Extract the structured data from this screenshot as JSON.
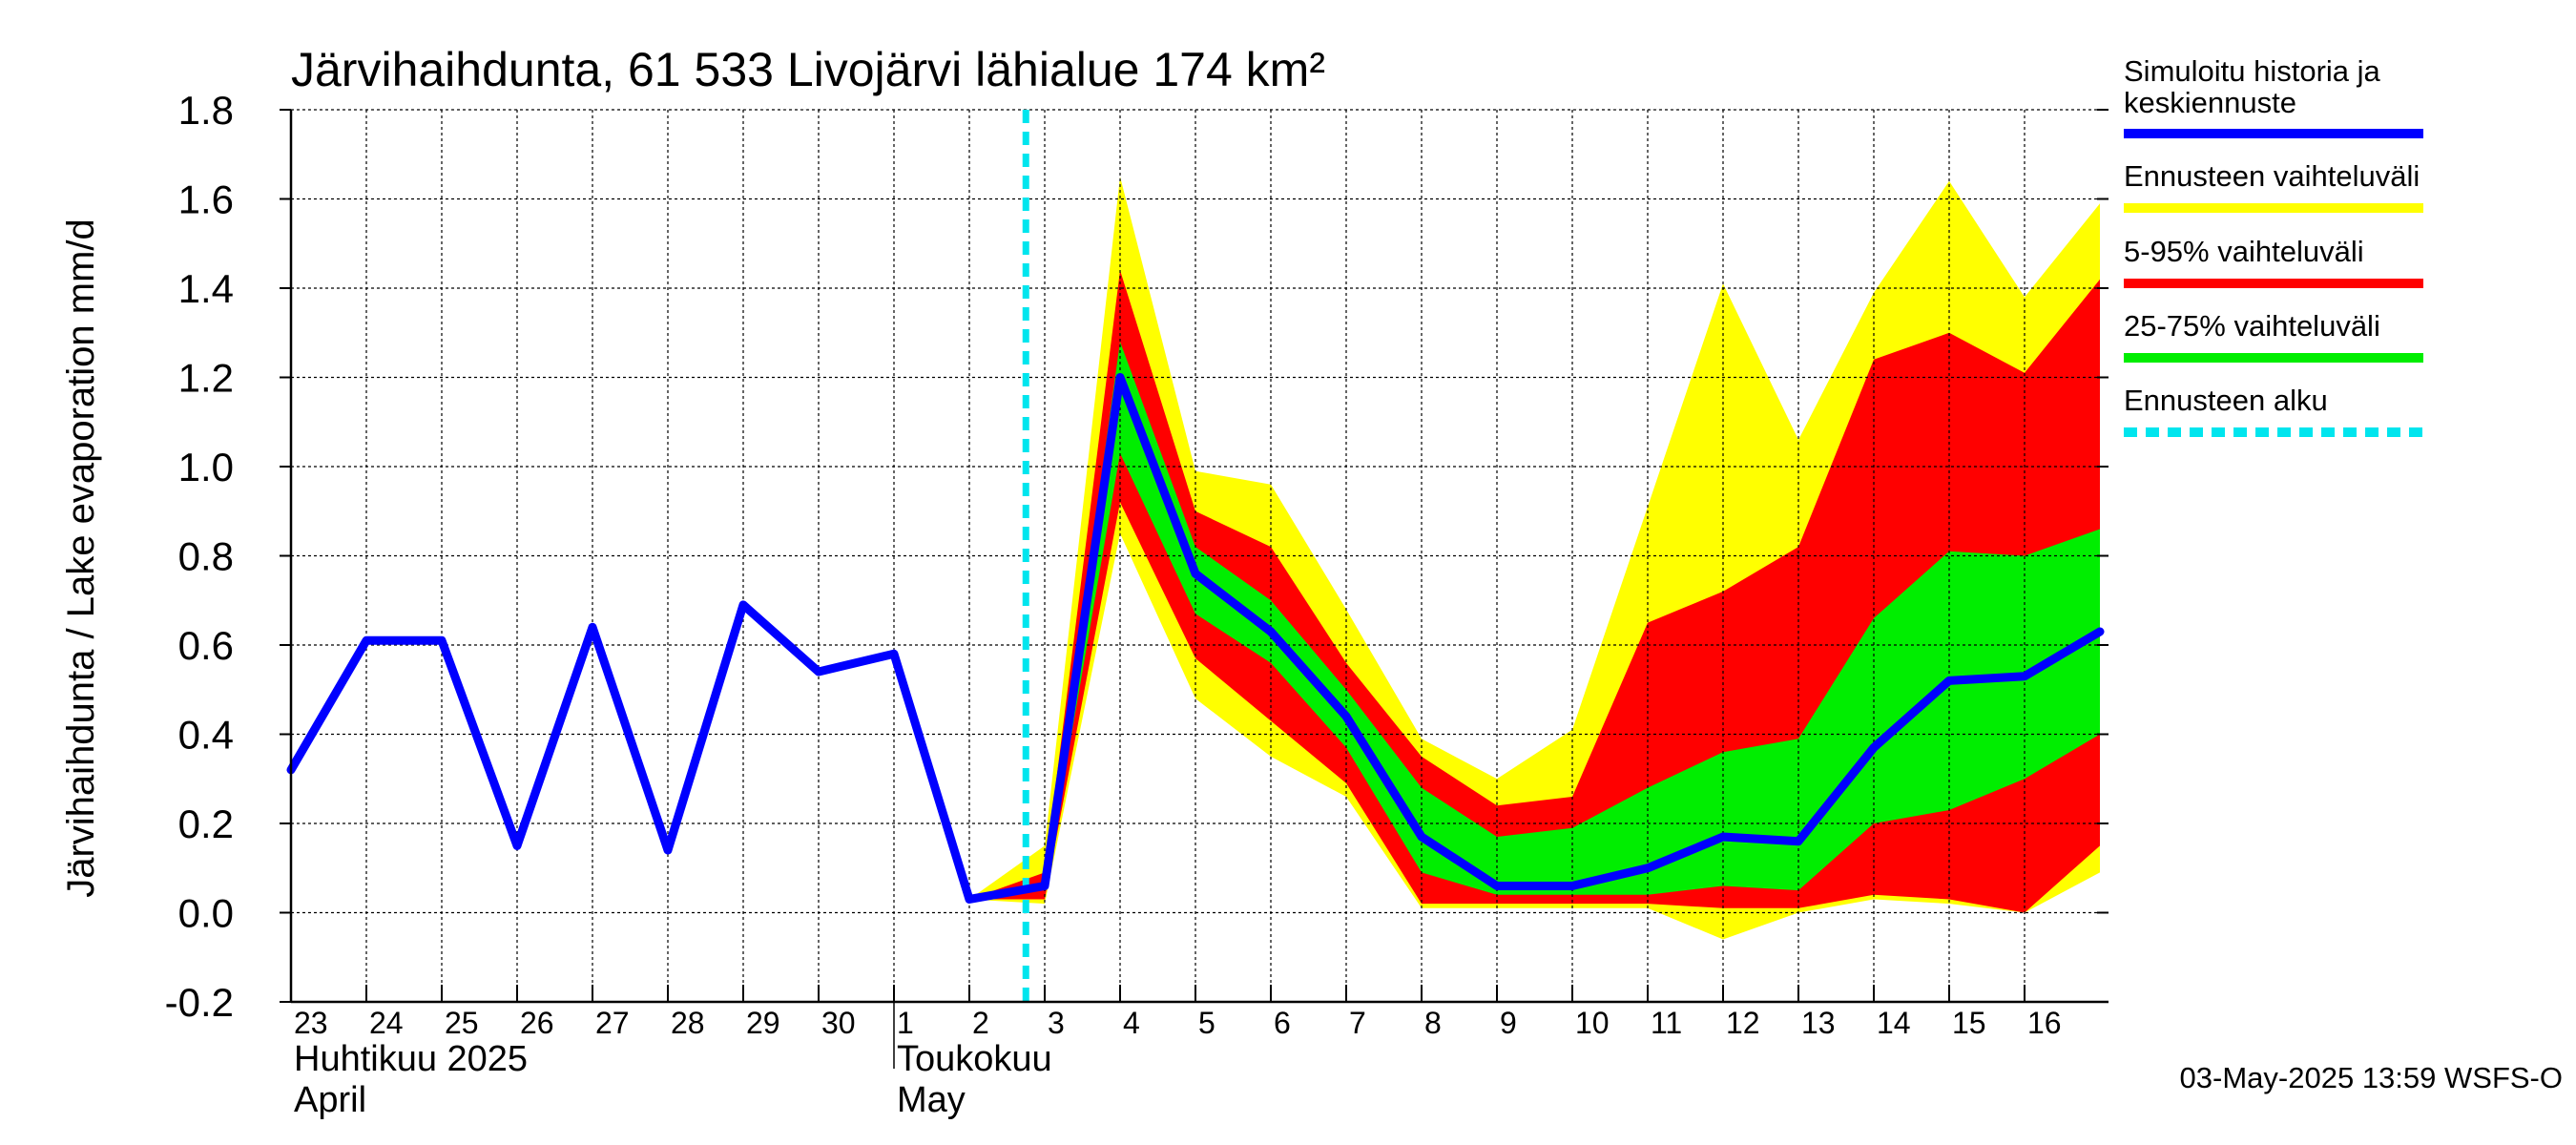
{
  "chart_data": {
    "type": "area",
    "title": "Järvihaihdunta, 61 533 Livojärvi lähialue 174 km²",
    "ylabel": "Järvihaihdunta / Lake evaporation   mm/d",
    "ylim": [
      -0.2,
      1.8
    ],
    "yticks": [
      -0.2,
      0.0,
      0.2,
      0.4,
      0.6,
      0.8,
      1.0,
      1.2,
      1.4,
      1.6,
      1.8
    ],
    "ytick_labels": [
      "-0.2",
      "0.0",
      "0.2",
      "0.4",
      "0.6",
      "0.8",
      "1.0",
      "1.2",
      "1.4",
      "1.6",
      "1.8"
    ],
    "x_start": "2025-04-23",
    "x_end": "2025-05-16",
    "grid": true,
    "xtick_labels": [
      {
        "date": "2025-04-23",
        "label": "23"
      },
      {
        "date": "2025-04-24",
        "label": "24"
      },
      {
        "date": "2025-04-25",
        "label": "25"
      },
      {
        "date": "2025-04-26",
        "label": "26"
      },
      {
        "date": "2025-04-27",
        "label": "27"
      },
      {
        "date": "2025-04-28",
        "label": "28"
      },
      {
        "date": "2025-04-29",
        "label": "29"
      },
      {
        "date": "2025-04-30",
        "label": "30"
      },
      {
        "date": "2025-05-01",
        "label": "1"
      },
      {
        "date": "2025-05-02",
        "label": "2"
      },
      {
        "date": "2025-05-03",
        "label": "3"
      },
      {
        "date": "2025-05-04",
        "label": "4"
      },
      {
        "date": "2025-05-05",
        "label": "5"
      },
      {
        "date": "2025-05-06",
        "label": "6"
      },
      {
        "date": "2025-05-07",
        "label": "7"
      },
      {
        "date": "2025-05-08",
        "label": "8"
      },
      {
        "date": "2025-05-09",
        "label": "9"
      },
      {
        "date": "2025-05-10",
        "label": "10"
      },
      {
        "date": "2025-05-11",
        "label": "11"
      },
      {
        "date": "2025-05-12",
        "label": "12"
      },
      {
        "date": "2025-05-13",
        "label": "13"
      },
      {
        "date": "2025-05-14",
        "label": "14"
      },
      {
        "date": "2025-05-15",
        "label": "15"
      },
      {
        "date": "2025-05-16",
        "label": "16"
      }
    ],
    "month_labels": [
      {
        "date": "2025-04-23",
        "line1": "Huhtikuu  2025",
        "line2": "April"
      },
      {
        "date": "2025-05-01",
        "line1": "Toukokuu",
        "line2": "May"
      }
    ],
    "forecast_start": "2025-05-02T18:00",
    "series": [
      {
        "name": "Simuloitu historia ja keskiennuste",
        "color": "#0000ff",
        "points": [
          [
            "2025-04-23",
            0.32
          ],
          [
            "2025-04-24",
            0.61
          ],
          [
            "2025-04-25",
            0.61
          ],
          [
            "2025-04-26",
            0.15
          ],
          [
            "2025-04-27",
            0.64
          ],
          [
            "2025-04-28",
            0.14
          ],
          [
            "2025-04-29",
            0.69
          ],
          [
            "2025-04-30",
            0.54
          ],
          [
            "2025-05-01",
            0.58
          ],
          [
            "2025-05-02",
            0.03
          ],
          [
            "2025-05-03",
            0.06
          ],
          [
            "2025-05-04",
            1.2
          ],
          [
            "2025-05-05",
            0.76
          ],
          [
            "2025-05-06",
            0.63
          ],
          [
            "2025-05-07",
            0.44
          ],
          [
            "2025-05-08",
            0.17
          ],
          [
            "2025-05-09",
            0.06
          ],
          [
            "2025-05-10",
            0.06
          ],
          [
            "2025-05-11",
            0.1
          ],
          [
            "2025-05-12",
            0.17
          ],
          [
            "2025-05-13",
            0.16
          ],
          [
            "2025-05-14",
            0.37
          ],
          [
            "2025-05-15",
            0.52
          ],
          [
            "2025-05-16",
            0.53
          ],
          [
            "2025-05-17",
            0.63
          ]
        ]
      }
    ],
    "bands": [
      {
        "name": "Ennusteen vaihteluväli",
        "color": "#ffff00",
        "dates": [
          "2025-05-02",
          "2025-05-03",
          "2025-05-04",
          "2025-05-05",
          "2025-05-06",
          "2025-05-07",
          "2025-05-08",
          "2025-05-09",
          "2025-05-10",
          "2025-05-11",
          "2025-05-12",
          "2025-05-13",
          "2025-05-14",
          "2025-05-15",
          "2025-05-16",
          "2025-05-17"
        ],
        "upper": [
          0.03,
          0.15,
          1.65,
          0.99,
          0.96,
          0.68,
          0.39,
          0.3,
          0.41,
          0.91,
          1.41,
          1.06,
          1.39,
          1.64,
          1.38,
          1.59
        ],
        "lower": [
          0.03,
          0.02,
          0.85,
          0.48,
          0.35,
          0.26,
          0.01,
          0.01,
          0.01,
          0.01,
          -0.06,
          0.0,
          0.03,
          0.02,
          0.0,
          0.09
        ]
      },
      {
        "name": "5-95% vaihteluväli",
        "color": "#ff0000",
        "dates": [
          "2025-05-02",
          "2025-05-03",
          "2025-05-04",
          "2025-05-05",
          "2025-05-06",
          "2025-05-07",
          "2025-05-08",
          "2025-05-09",
          "2025-05-10",
          "2025-05-11",
          "2025-05-12",
          "2025-05-13",
          "2025-05-14",
          "2025-05-15",
          "2025-05-16",
          "2025-05-17"
        ],
        "upper": [
          0.03,
          0.09,
          1.44,
          0.9,
          0.82,
          0.56,
          0.35,
          0.24,
          0.26,
          0.65,
          0.72,
          0.82,
          1.24,
          1.3,
          1.21,
          1.42
        ],
        "lower": [
          0.03,
          0.03,
          0.92,
          0.57,
          0.43,
          0.29,
          0.02,
          0.02,
          0.02,
          0.02,
          0.01,
          0.01,
          0.04,
          0.03,
          0.0,
          0.15
        ]
      },
      {
        "name": "25-75% vaihteluväli",
        "color": "#00ee00",
        "dates": [
          "2025-05-03",
          "2025-05-04",
          "2025-05-05",
          "2025-05-06",
          "2025-05-07",
          "2025-05-08",
          "2025-05-09",
          "2025-05-10",
          "2025-05-11",
          "2025-05-12",
          "2025-05-13",
          "2025-05-14",
          "2025-05-15",
          "2025-05-16",
          "2025-05-17"
        ],
        "upper": [
          0.07,
          1.28,
          0.82,
          0.7,
          0.5,
          0.28,
          0.17,
          0.19,
          0.28,
          0.36,
          0.39,
          0.66,
          0.81,
          0.8,
          0.86
        ],
        "lower": [
          0.05,
          1.03,
          0.67,
          0.56,
          0.37,
          0.09,
          0.04,
          0.04,
          0.04,
          0.06,
          0.05,
          0.2,
          0.23,
          0.3,
          0.4
        ]
      }
    ],
    "legend": [
      {
        "label_lines": [
          "Simuloitu historia ja",
          "keskiennuste"
        ],
        "color": "#0000ff",
        "style": "solid"
      },
      {
        "label_lines": [
          "Ennusteen vaihteluväli"
        ],
        "color": "#ffff00",
        "style": "solid"
      },
      {
        "label_lines": [
          "5-95% vaihteluväli"
        ],
        "color": "#ff0000",
        "style": "solid"
      },
      {
        "label_lines": [
          "25-75% vaihteluväli"
        ],
        "color": "#00ee00",
        "style": "solid"
      },
      {
        "label_lines": [
          "Ennusteen alku"
        ],
        "color": "#00e5ee",
        "style": "dashed"
      }
    ],
    "legend_placement": "right",
    "footer": "03-May-2025 13:59 WSFS-O"
  }
}
